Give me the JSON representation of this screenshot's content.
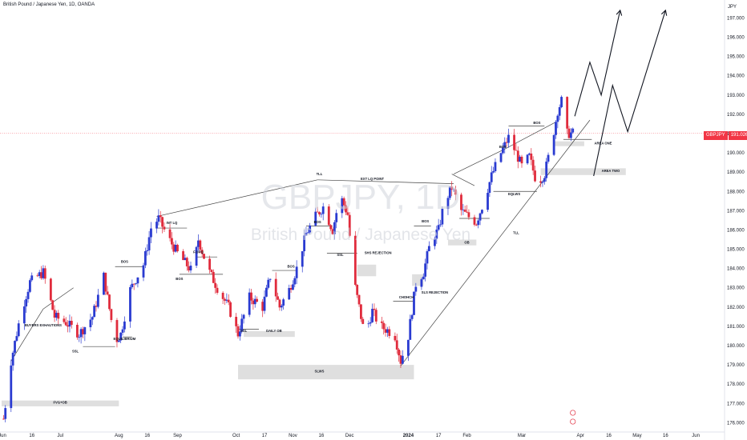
{
  "header": {
    "symbol_title": "British Pound / Japanese Yen, 1D, OANDA"
  },
  "watermark": {
    "symbol": "GBPJPY, 1D",
    "description": "British Pound / Japanese Yen"
  },
  "price_scale": {
    "currency": "JPY",
    "last_price_symbol": "GBPJPY",
    "last_price": "191.026"
  },
  "colors": {
    "up": "#2a3bd1",
    "down": "#e02b3c",
    "zone": "#d9d9d9",
    "line": "#444444",
    "last_price": "#f23645"
  },
  "chart_data": {
    "type": "candlestick",
    "ylim": [
      175.6,
      197.6
    ],
    "y_ticks": [
      "197.000",
      "196.000",
      "195.000",
      "194.000",
      "193.000",
      "192.000",
      "191.000",
      "190.000",
      "189.000",
      "188.000",
      "187.000",
      "186.000",
      "185.000",
      "184.000",
      "183.000",
      "182.000",
      "181.000",
      "180.000",
      "179.000",
      "178.000",
      "177.000",
      "176.000"
    ],
    "x_ticks": [
      "Jun",
      "16",
      "Jul",
      "Aug",
      "16",
      "Sep",
      "Oct",
      "17",
      "Nov",
      "16",
      "Dec",
      "2024",
      "17",
      "Feb",
      "Mar",
      "Apr",
      "16",
      "May",
      "16",
      "Jun"
    ],
    "anchor_prices": [
      [
        "2023-06-01",
        176.2
      ],
      [
        "2023-06-03",
        177.6
      ],
      [
        "2023-06-05",
        179.2
      ],
      [
        "2023-06-10",
        181.6
      ],
      [
        "2023-06-15",
        183.3
      ],
      [
        "2023-06-22",
        183.8
      ],
      [
        "2023-06-28",
        181.5
      ],
      [
        "2023-07-04",
        181.2
      ],
      [
        "2023-07-11",
        180.6
      ],
      [
        "2023-07-18",
        181.5
      ],
      [
        "2023-07-24",
        183.6
      ],
      [
        "2023-07-30",
        180.2
      ],
      [
        "2023-08-02",
        180.6
      ],
      [
        "2023-08-07",
        182.9
      ],
      [
        "2023-08-14",
        184.2
      ],
      [
        "2023-08-18",
        186.1
      ],
      [
        "2023-08-22",
        186.6
      ],
      [
        "2023-08-27",
        185.6
      ],
      [
        "2023-09-01",
        184.8
      ],
      [
        "2023-09-05",
        184.3
      ],
      [
        "2023-09-09",
        183.8
      ],
      [
        "2023-09-12",
        185.5
      ],
      [
        "2023-09-17",
        184.0
      ],
      [
        "2023-09-22",
        183.0
      ],
      [
        "2023-09-28",
        182.0
      ],
      [
        "2023-10-03",
        180.6
      ],
      [
        "2023-10-09",
        182.5
      ],
      [
        "2023-10-16",
        182.0
      ],
      [
        "2023-10-20",
        183.6
      ],
      [
        "2023-10-25",
        182.0
      ],
      [
        "2023-10-30",
        182.9
      ],
      [
        "2023-11-03",
        184.0
      ],
      [
        "2023-11-08",
        185.8
      ],
      [
        "2023-11-13",
        186.7
      ],
      [
        "2023-11-17",
        187.2
      ],
      [
        "2023-11-22",
        186.0
      ],
      [
        "2023-11-26",
        187.8
      ],
      [
        "2023-11-30",
        186.8
      ],
      [
        "2023-12-03",
        183.5
      ],
      [
        "2023-12-06",
        182.0
      ],
      [
        "2023-12-09",
        180.5
      ],
      [
        "2023-12-13",
        181.8
      ],
      [
        "2023-12-17",
        181.0
      ],
      [
        "2023-12-21",
        180.8
      ],
      [
        "2023-12-25",
        180.5
      ],
      [
        "2023-12-28",
        179.2
      ],
      [
        "2024-01-01",
        180.5
      ],
      [
        "2024-01-05",
        183.2
      ],
      [
        "2024-01-09",
        183.8
      ],
      [
        "2024-01-13",
        185.5
      ],
      [
        "2024-01-17",
        186.0
      ],
      [
        "2024-01-20",
        187.4
      ],
      [
        "2024-01-24",
        188.2
      ],
      [
        "2024-01-29",
        187.0
      ],
      [
        "2024-02-03",
        186.6
      ],
      [
        "2024-02-06",
        186.4
      ],
      [
        "2024-02-10",
        187.5
      ],
      [
        "2024-02-14",
        188.8
      ],
      [
        "2024-02-18",
        189.8
      ],
      [
        "2024-02-23",
        190.8
      ],
      [
        "2024-02-27",
        190.0
      ],
      [
        "2024-03-01",
        189.3
      ],
      [
        "2024-03-05",
        189.8
      ],
      [
        "2024-03-09",
        188.4
      ],
      [
        "2024-03-13",
        188.9
      ],
      [
        "2024-03-17",
        190.6
      ],
      [
        "2024-03-20",
        192.2
      ],
      [
        "2024-03-22",
        192.7
      ],
      [
        "2024-03-25",
        191.0
      ],
      [
        "2024-03-28",
        191.026
      ]
    ],
    "projections": [
      {
        "name": "",
        "points": [
          [
            "2024-03-29",
            191.9
          ],
          [
            "2024-04-06",
            194.7
          ],
          [
            "2024-04-12",
            193.0
          ],
          [
            "2024-04-22",
            197.4
          ]
        ]
      },
      {
        "name": "",
        "points": [
          [
            "2024-04-08",
            188.8
          ],
          [
            "2024-04-18",
            193.5
          ],
          [
            "2024-04-26",
            191.1
          ],
          [
            "2024-05-16",
            197.4
          ]
        ]
      }
    ]
  },
  "annotations": {
    "zones": [
      {
        "label": "FVG+OB",
        "t1": "2023-05-31",
        "t2": "2023-08-01",
        "p_hi": 177.15,
        "p_lo": 176.85
      },
      {
        "label": "DAILY OB",
        "t1": "2023-10-06",
        "t2": "2023-11-02",
        "p_hi": 180.75,
        "p_lo": 180.45
      },
      {
        "label": "SLWS",
        "t1": "2023-10-03",
        "t2": "2024-01-04",
        "p_hi": 179.0,
        "p_lo": 178.25
      },
      {
        "label": "SHS REJECTION",
        "t1": "2023-12-05",
        "t2": "2023-12-15",
        "p_hi": 184.2,
        "p_lo": 183.6
      },
      {
        "label": "SLS REJECTION",
        "t1": "2024-01-03",
        "t2": "2024-01-09",
        "p_hi": 183.7,
        "p_lo": 183.1
      },
      {
        "label": "OB",
        "t1": "2024-01-22",
        "t2": "2024-02-06",
        "p_hi": 185.5,
        "p_lo": 185.2
      },
      {
        "label": "AREA ONE",
        "t1": "2024-03-18",
        "t2": "2024-04-03",
        "p_hi": 190.6,
        "p_lo": 190.35
      },
      {
        "label": "AREA TWO",
        "t1": "2024-03-11",
        "t2": "2024-04-25",
        "p_hi": 189.2,
        "p_lo": 188.85
      }
    ],
    "labels": [
      {
        "text": "BUYERS EXHAUTIONS",
        "t": "2023-06-22",
        "p": 181.0
      },
      {
        "text": "SSL",
        "t": "2023-07-09",
        "p": 179.65
      },
      {
        "text": "EQUILIBRIUM",
        "t": "2023-08-04",
        "p": 180.3
      },
      {
        "text": "BOS",
        "t": "2023-08-04",
        "p": 184.3
      },
      {
        "text": "INT LQ",
        "t": "2023-08-29",
        "p": 186.3
      },
      {
        "text": "BOS",
        "t": "2023-09-02",
        "p": 183.4
      },
      {
        "text": "F.OPQ",
        "t": "2023-09-12",
        "p": 184.8
      },
      {
        "text": "SSL",
        "t": "2023-10-06",
        "p": 180.7
      },
      {
        "text": "DAILY OB",
        "t": "2023-10-22",
        "p": 180.7
      },
      {
        "text": "BOS",
        "t": "2023-10-31",
        "p": 184.05
      },
      {
        "text": "BOS",
        "t": "2023-11-14",
        "p": 186.35
      },
      {
        "text": "TLL",
        "t": "2023-11-15",
        "p": 188.85
      },
      {
        "text": "SSL",
        "t": "2023-11-26",
        "p": 184.65
      },
      {
        "text": "EXT LQ POINT",
        "t": "2023-12-13",
        "p": 188.6
      },
      {
        "text": "SHS REJECTION",
        "t": "2023-12-16",
        "p": 184.75
      },
      {
        "text": "CHOHCH",
        "t": "2023-12-31",
        "p": 182.45
      },
      {
        "text": "SLS REJECTION",
        "t": "2024-01-15",
        "p": 182.7
      },
      {
        "text": "BOS",
        "t": "2024-01-10",
        "p": 186.4
      },
      {
        "text": "OB",
        "t": "2024-02-01",
        "p": 185.3
      },
      {
        "text": "BOS",
        "t": "2024-02-20",
        "p": 190.25
      },
      {
        "text": "EQLWS",
        "t": "2024-02-26",
        "p": 187.8
      },
      {
        "text": "TLL",
        "t": "2024-02-27",
        "p": 185.8
      },
      {
        "text": "BOS",
        "t": "2024-03-09",
        "p": 191.5
      },
      {
        "text": "AREA ONE",
        "t": "2024-04-13",
        "p": 190.45
      },
      {
        "text": "AREA TWO",
        "t": "2024-04-17",
        "p": 189.0
      },
      {
        "text": "SLWS",
        "t": "2023-11-15",
        "p": 178.6
      },
      {
        "text": "FVG+OB",
        "t": "2023-07-01",
        "p": 177.0
      }
    ],
    "lines": [
      {
        "from": [
          "2023-06-05",
          179.2
        ],
        "to": [
          "2023-06-22",
          181.9
        ]
      },
      {
        "from": [
          "2023-06-22",
          181.9
        ],
        "to": [
          "2023-07-08",
          183.0
        ]
      },
      {
        "from": [
          "2023-07-13",
          179.95
        ],
        "to": [
          "2023-07-30",
          179.95
        ]
      },
      {
        "from": [
          "2023-08-03",
          180.45
        ],
        "to": [
          "2023-08-08",
          180.45
        ]
      },
      {
        "from": [
          "2023-07-30",
          184.1
        ],
        "to": [
          "2023-08-14",
          184.1
        ]
      },
      {
        "from": [
          "2023-08-21",
          186.7
        ],
        "to": [
          "2023-11-14",
          188.6
        ]
      },
      {
        "from": [
          "2023-08-21",
          186.1
        ],
        "to": [
          "2023-09-06",
          186.1
        ]
      },
      {
        "from": [
          "2023-09-02",
          183.7
        ],
        "to": [
          "2023-09-25",
          183.7
        ]
      },
      {
        "from": [
          "2023-09-11",
          184.6
        ],
        "to": [
          "2023-09-22",
          184.6
        ]
      },
      {
        "from": [
          "2023-10-03",
          180.85
        ],
        "to": [
          "2023-10-14",
          180.85
        ]
      },
      {
        "from": [
          "2023-10-21",
          183.9
        ],
        "to": [
          "2023-11-03",
          183.9
        ]
      },
      {
        "from": [
          "2023-11-08",
          186.2
        ],
        "to": [
          "2023-11-22",
          186.2
        ]
      },
      {
        "from": [
          "2023-11-19",
          184.8
        ],
        "to": [
          "2023-12-05",
          184.8
        ]
      },
      {
        "from": [
          "2023-11-14",
          188.6
        ],
        "to": [
          "2024-01-25",
          188.4
        ]
      },
      {
        "from": [
          "2023-12-24",
          182.3
        ],
        "to": [
          "2024-01-04",
          182.3
        ]
      },
      {
        "from": [
          "2024-01-04",
          186.2
        ],
        "to": [
          "2024-01-13",
          186.2
        ]
      },
      {
        "from": [
          "2024-01-28",
          186.6
        ],
        "to": [
          "2024-02-13",
          186.6
        ]
      },
      {
        "from": [
          "2024-02-15",
          188.0
        ],
        "to": [
          "2024-03-09",
          188.0
        ]
      },
      {
        "from": [
          "2024-01-25",
          188.9
        ],
        "to": [
          "2024-02-21",
          190.2
        ]
      },
      {
        "from": [
          "2024-02-21",
          190.2
        ],
        "to": [
          "2024-03-19",
          191.6
        ]
      },
      {
        "from": [
          "2024-02-23",
          191.4
        ],
        "to": [
          "2024-03-13",
          191.4
        ]
      },
      {
        "from": [
          "2024-01-24",
          188.9
        ],
        "to": [
          "2024-02-05",
          188.3
        ]
      },
      {
        "from": [
          "2023-12-28",
          178.95
        ],
        "to": [
          "2024-04-06",
          191.7
        ]
      },
      {
        "from": [
          "2024-03-23",
          190.7
        ],
        "to": [
          "2024-04-07",
          190.7
        ]
      }
    ]
  }
}
